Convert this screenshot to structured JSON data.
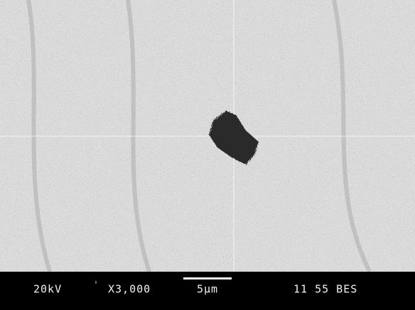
{
  "info_bar": {
    "voltage": "20kV",
    "magnification": "X3,000",
    "scale": "5µm",
    "label": "11 55 BES"
  }
}
